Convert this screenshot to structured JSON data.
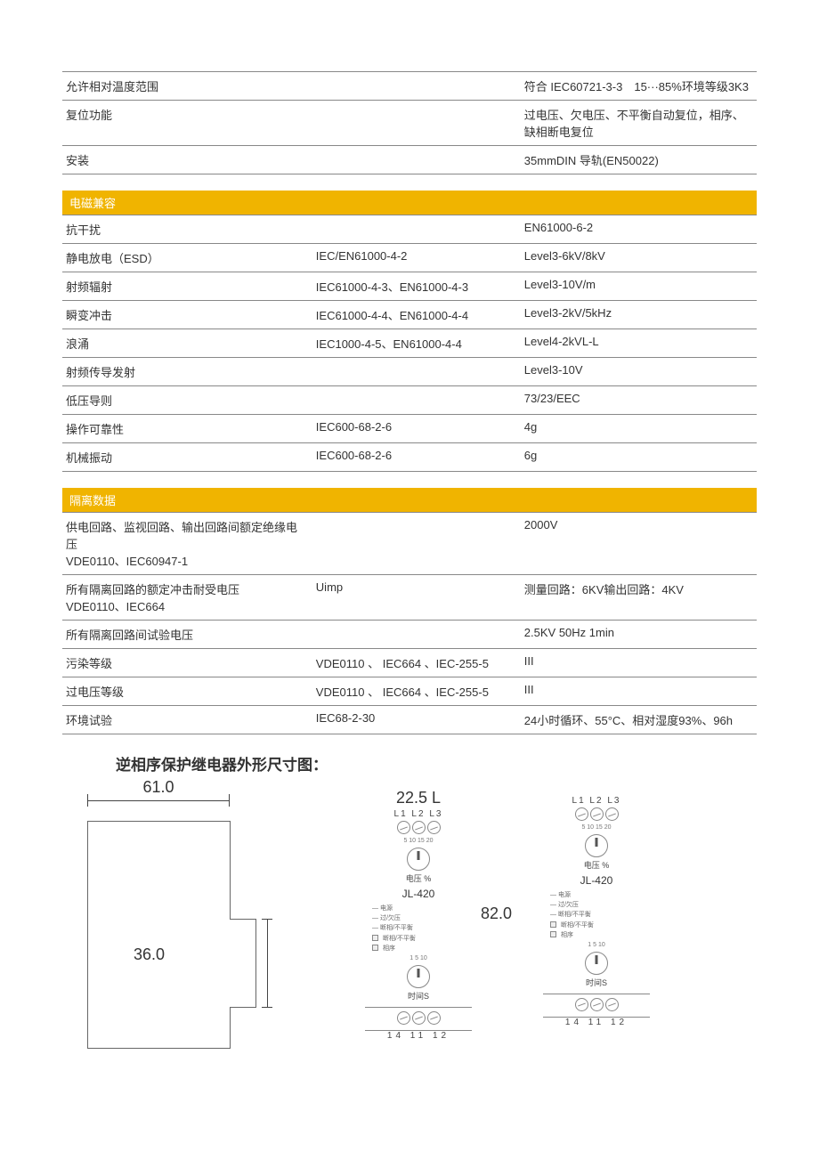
{
  "top_table": {
    "rows": [
      {
        "label": "允许相对温度范围",
        "mid": "",
        "val": "符合 IEC60721-3-3　15···85%环境等级3K3"
      },
      {
        "label": "复位功能",
        "mid": "",
        "val": "过电压、欠电压、不平衡自动复位，相序、缺相断电复位"
      },
      {
        "label": "安装",
        "mid": "",
        "val": "35mmDIN 导轨(EN50022)"
      }
    ]
  },
  "emc": {
    "title": "电磁兼容",
    "rows": [
      {
        "label": "抗干扰",
        "mid": "",
        "val": "EN61000-6-2"
      },
      {
        "label": "静电放电（ESD）",
        "mid": "IEC/EN61000-4-2",
        "val": "Level3-6kV/8kV"
      },
      {
        "label": "射频辐射",
        "mid": "IEC61000-4-3、EN61000-4-3",
        "val": "Level3-10V/m"
      },
      {
        "label": "瞬变冲击",
        "mid": "IEC61000-4-4、EN61000-4-4",
        "val": "Level3-2kV/5kHz"
      },
      {
        "label": "浪涌",
        "mid": "IEC1000-4-5、EN61000-4-4",
        "val": "Level4-2kVL-L"
      },
      {
        "label": "射频传导发射",
        "mid": "",
        "val": "Level3-10V"
      },
      {
        "label": "低压导则",
        "mid": "",
        "val": "73/23/EEC"
      },
      {
        "label": "操作可靠性",
        "mid": "IEC600-68-2-6",
        "val": "4g"
      },
      {
        "label": "机械振动",
        "mid": "IEC600-68-2-6",
        "val": "6g"
      }
    ]
  },
  "iso": {
    "title": "隔离数据",
    "rows": [
      {
        "label": "供电回路、监视回路、输出回路间额定绝缘电压\nVDE0110、IEC60947-1",
        "mid": "",
        "val": "2000V"
      },
      {
        "label": "所有隔离回路的额定冲击耐受电压\nVDE0110、IEC664",
        "mid": "Uimp",
        "val": "测量回路：6KV输出回路：4KV"
      },
      {
        "label": "所有隔离回路间试验电压",
        "mid": "",
        "val": "2.5KV 50Hz 1min"
      },
      {
        "label": "污染等级",
        "mid": "VDE0110 、 IEC664 、IEC-255-5",
        "val": "III"
      },
      {
        "label": "过电压等级",
        "mid": "VDE0110 、 IEC664 、IEC-255-5",
        "val": "III"
      },
      {
        "label": "环境试验",
        "mid": "IEC68-2-30",
        "val": "24小时循环、55°C、相对湿度93%、96h"
      }
    ]
  },
  "diagram": {
    "title": "逆相序保护继电器外形尺寸图：",
    "width_mm": "61.0",
    "depth_mm": "36.0",
    "panel_width_mm": "22.5 L",
    "panel_height_mm": "82.0",
    "terms_top": "L1 L2 L3",
    "model": "JL-420",
    "dial1_label": "电压 %",
    "dial2_label": "时间S",
    "dial1_ticks": "5  10  15  20",
    "dial2_ticks": "1  5  10",
    "leds": [
      "— 电源",
      "— 过/欠压",
      "— 断相/不平衡",
      "□ 断相/不平衡",
      "□ 相序"
    ],
    "bottom_nums_a": "14 11  12",
    "bottom_nums_b": "14  11  12"
  }
}
